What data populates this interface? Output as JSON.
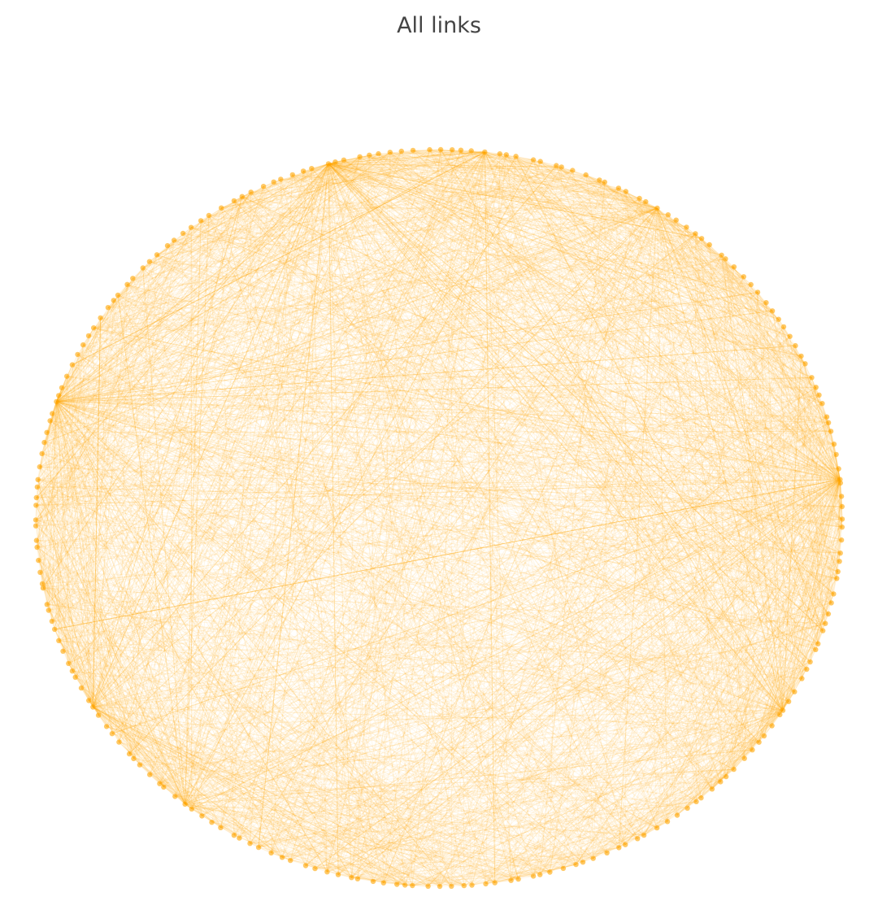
{
  "title": "All links"
}
